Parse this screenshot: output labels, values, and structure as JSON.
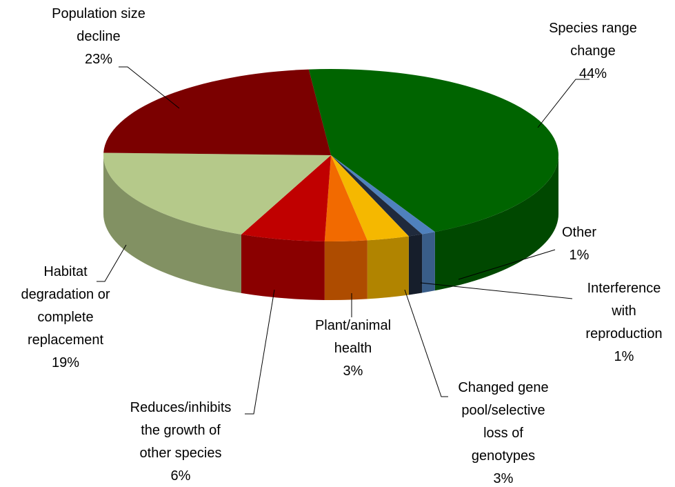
{
  "chart_data": {
    "type": "pie3d",
    "categories": [
      "Species range change",
      "Other",
      "Interference with reproduction",
      "Changed gene pool/selective loss of genotypes",
      "Plant/animal health",
      "Reduces/inhibits the growth of other species",
      "Habitat degradation or complete replacement",
      "Population size decline"
    ],
    "values": [
      44,
      1,
      1,
      3,
      3,
      6,
      19,
      23
    ],
    "value_labels": [
      "44%",
      "1%",
      "1%",
      "3%",
      "3%",
      "6%",
      "19%",
      "23%"
    ],
    "colors": [
      "#006400",
      "#4f81bd",
      "#1f2a3c",
      "#f5b800",
      "#f26a00",
      "#c00000",
      "#b5c98a",
      "#7b0000"
    ]
  }
}
